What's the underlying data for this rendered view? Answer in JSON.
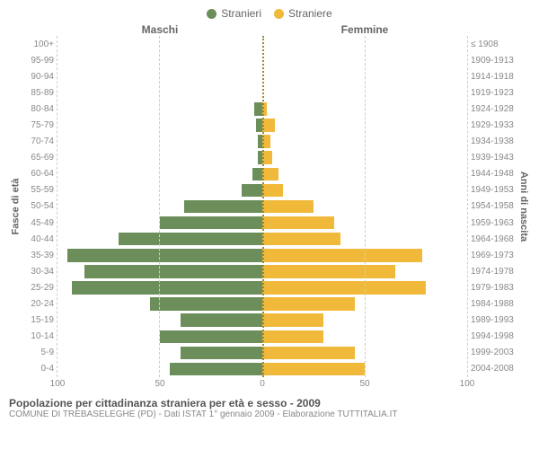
{
  "chart": {
    "type": "population-pyramid",
    "legend": [
      {
        "label": "Stranieri",
        "color": "#6b8e5a"
      },
      {
        "label": "Straniere",
        "color": "#f0b93a"
      }
    ],
    "headers": {
      "male": "Maschi",
      "female": "Femmine"
    },
    "axis_titles": {
      "left": "Fasce di età",
      "right": "Anni di nascita"
    },
    "xlim": 100,
    "x_ticks": [
      100,
      50,
      0,
      50,
      100
    ],
    "grid_color": "#cccccc",
    "background_color": "#ffffff",
    "font_family": "Arial",
    "label_fontsize": 10,
    "axis_title_fontsize": 11,
    "male_color": "#6b8e5a",
    "female_color": "#f0b93a",
    "age_groups": [
      "100+",
      "95-99",
      "90-94",
      "85-89",
      "80-84",
      "75-79",
      "70-74",
      "65-69",
      "60-64",
      "55-59",
      "50-54",
      "45-49",
      "40-44",
      "35-39",
      "30-34",
      "25-29",
      "20-24",
      "15-19",
      "10-14",
      "5-9",
      "0-4"
    ],
    "birth_years": [
      "≤ 1908",
      "1909-1913",
      "1914-1918",
      "1919-1923",
      "1924-1928",
      "1929-1933",
      "1934-1938",
      "1939-1943",
      "1944-1948",
      "1949-1953",
      "1954-1958",
      "1959-1963",
      "1964-1968",
      "1969-1973",
      "1974-1978",
      "1979-1983",
      "1984-1988",
      "1989-1993",
      "1994-1998",
      "1999-2003",
      "2004-2008"
    ],
    "male_values": [
      0,
      0,
      0,
      0,
      4,
      3,
      2,
      2,
      5,
      10,
      38,
      50,
      70,
      95,
      87,
      93,
      55,
      40,
      50,
      40,
      45
    ],
    "female_values": [
      0,
      0,
      0,
      0,
      2,
      6,
      4,
      5,
      8,
      10,
      25,
      35,
      38,
      78,
      65,
      80,
      45,
      30,
      30,
      45,
      50
    ]
  },
  "footer": {
    "title": "Popolazione per cittadinanza straniera per età e sesso - 2009",
    "subtitle": "COMUNE DI TREBASELEGHE (PD) - Dati ISTAT 1° gennaio 2009 - Elaborazione TUTTITALIA.IT"
  }
}
